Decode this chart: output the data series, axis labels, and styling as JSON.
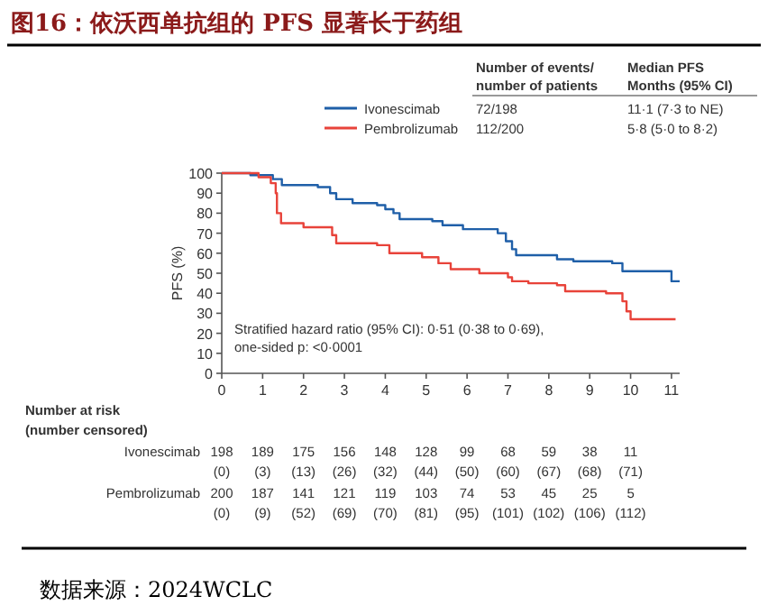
{
  "chart_data": {
    "type": "step",
    "title": "图16：依沃西单抗组的 PFS 显著长于药组",
    "ylabel": "PFS (%)",
    "xlim": [
      0,
      11.2
    ],
    "xticks": [
      0,
      1,
      2,
      3,
      4,
      5,
      6,
      7,
      8,
      9,
      10,
      11
    ],
    "ylim": [
      0,
      100
    ],
    "yticks": [
      0,
      10,
      20,
      30,
      40,
      50,
      60,
      70,
      80,
      90,
      100
    ],
    "grid": false,
    "legend": "top",
    "marker": "none",
    "line_style": "solid",
    "series": [
      {
        "name": "Ivonescimab",
        "color": "#1f5fa8",
        "x": [
          0,
          0.7,
          1.25,
          1.47,
          2.35,
          2.65,
          2.8,
          3.2,
          3.8,
          4.0,
          4.2,
          4.35,
          5.15,
          5.4,
          5.9,
          6.75,
          6.95,
          7.1,
          7.2,
          8.2,
          8.6,
          9.55,
          9.8,
          11.0,
          11.2
        ],
        "values": [
          100,
          99,
          97,
          94,
          93,
          90,
          87,
          85,
          84,
          82,
          80,
          77,
          76,
          74,
          72,
          70,
          66,
          62,
          59,
          57,
          56,
          55,
          51,
          46,
          46
        ]
      },
      {
        "name": "Pembrolizumab",
        "color": "#e8433a",
        "x": [
          0,
          0.9,
          1.2,
          1.32,
          1.35,
          1.45,
          2.0,
          2.7,
          2.8,
          3.8,
          4.1,
          4.9,
          5.3,
          5.6,
          6.3,
          7.0,
          7.1,
          7.5,
          8.2,
          8.4,
          9.4,
          9.8,
          9.9,
          10.0,
          11.1
        ],
        "values": [
          100,
          98,
          95,
          90,
          80,
          75,
          73,
          69,
          65,
          64,
          60,
          58,
          55,
          52,
          50,
          48,
          46,
          45,
          44,
          41,
          40,
          36,
          31,
          27,
          27
        ]
      }
    ],
    "annotations": [
      "Number of events/\nnumber of patients",
      "Median PFS\nMonths (95% CI)",
      "72/198",
      "11·1 (7·3 to NE)",
      "112/200",
      "5·8 (5·0 to 8·2)",
      "Stratified hazard ratio (95% CI): 0·51 (0·38 to 0·69),\none-sided p: <0·0001",
      "Number at risk\n(number censored)",
      "Ivonescimab",
      "198 189 175 156 148 128 99 68 59 38 11",
      "(0) (3) (13) (26) (32) (44) (50) (60) (67) (68) (71)",
      "Pembrolizumab",
      "200 187 141 121 119 103 74 53 45 25 5",
      "(0) (9) (52) (69) (70) (81) (95) (101) (102) (106) (112)",
      "数据来源：2024WCLC"
    ]
  }
}
